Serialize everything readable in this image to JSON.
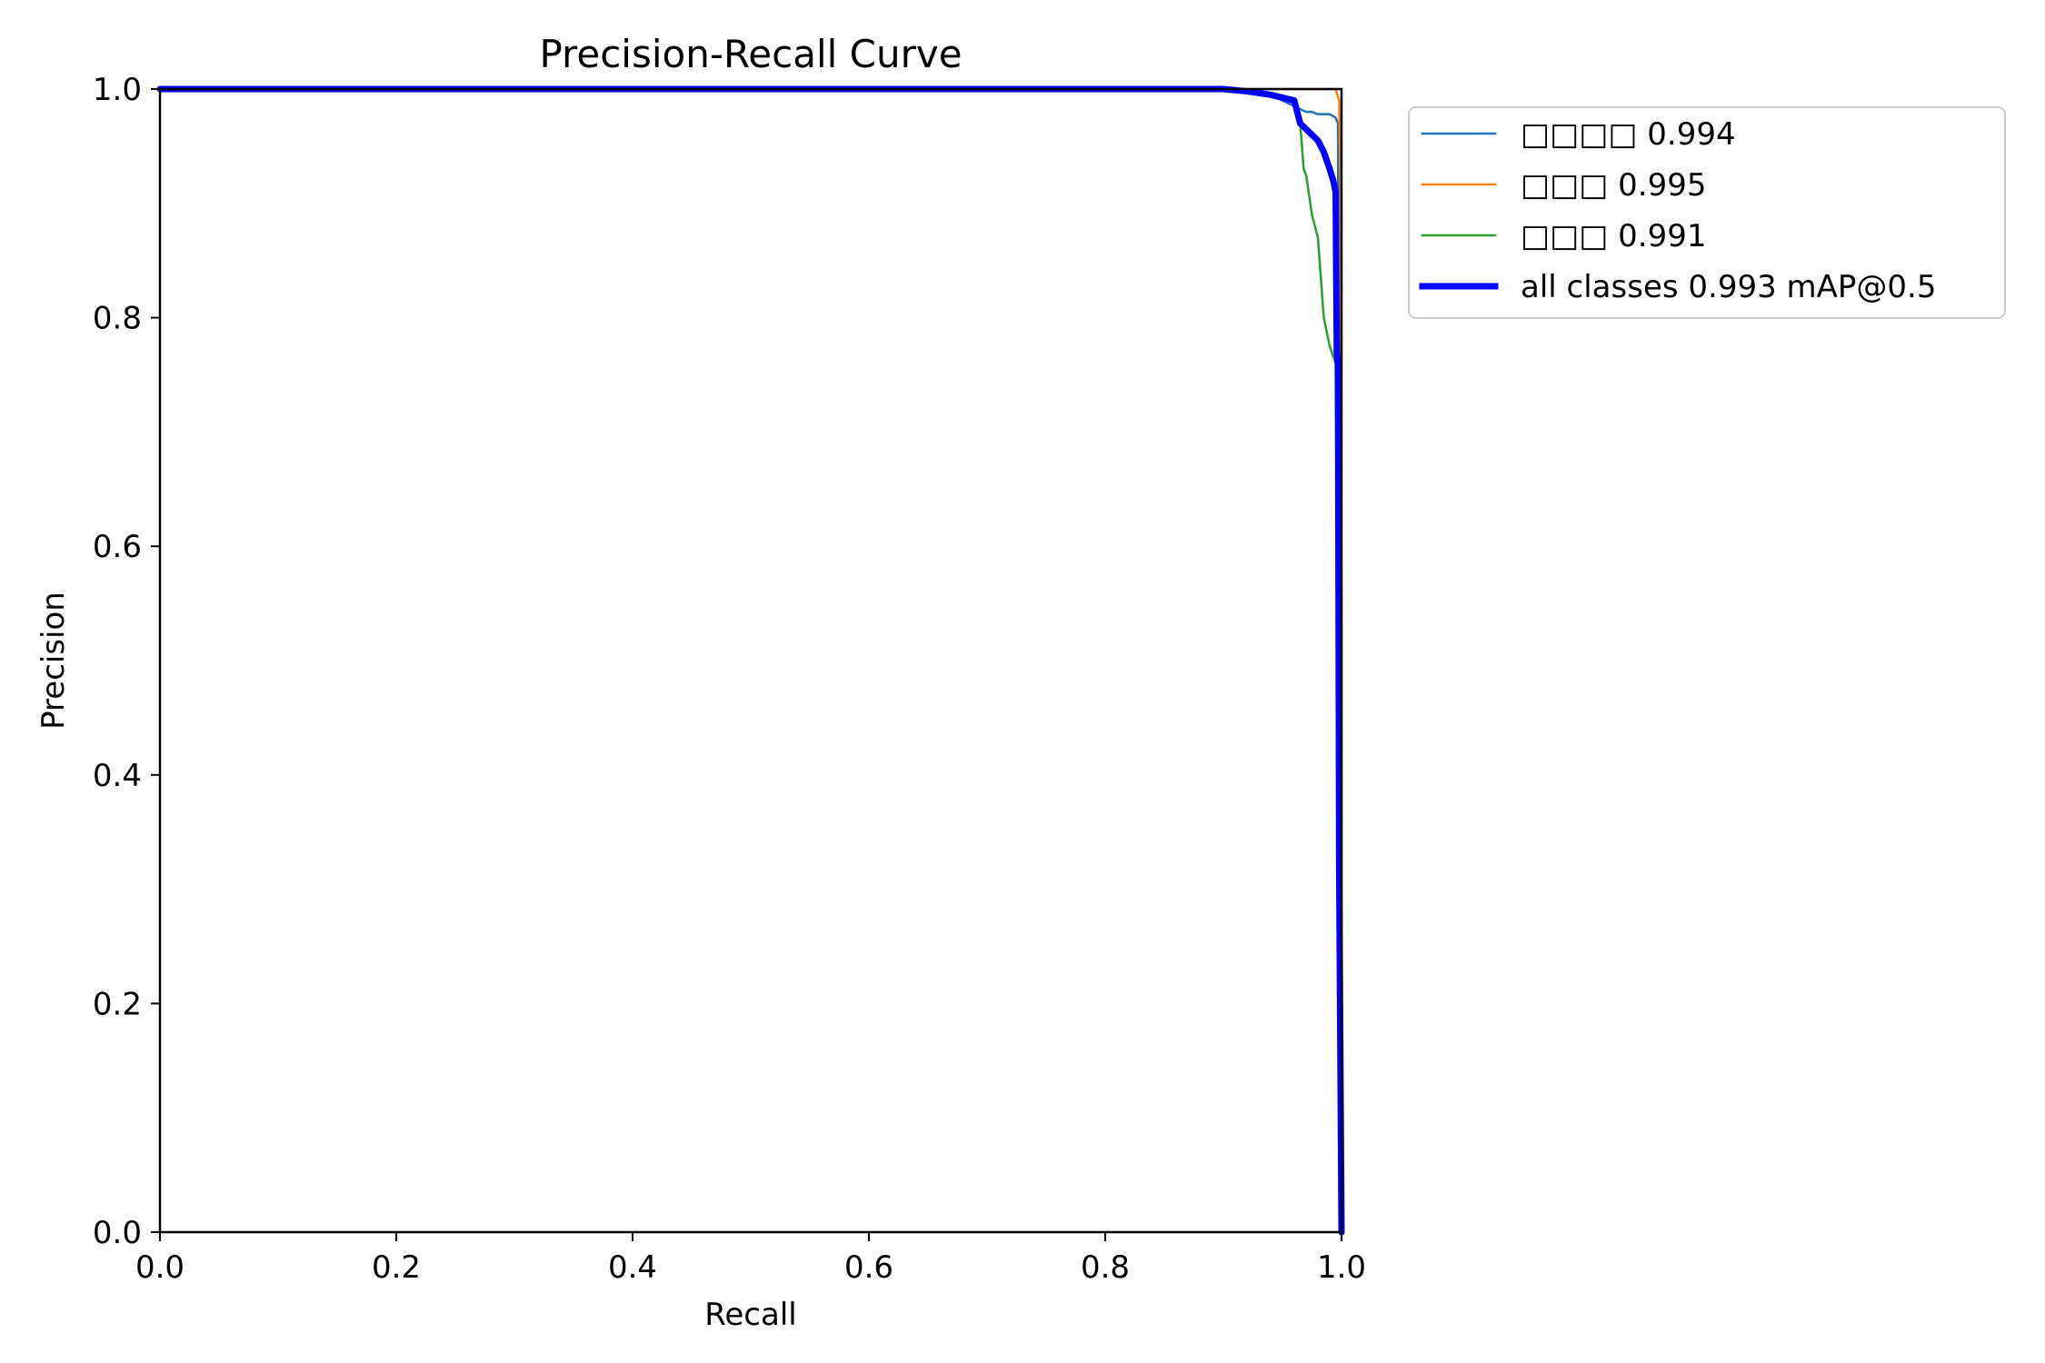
{
  "chart_data": {
    "type": "line",
    "title": "Precision-Recall Curve",
    "xlabel": "Recall",
    "ylabel": "Precision",
    "xlim": [
      0,
      1
    ],
    "ylim": [
      0,
      1
    ],
    "grid": false,
    "legend_placement": "outside-top-right",
    "x_ticks": [
      "0.0",
      "0.2",
      "0.4",
      "0.6",
      "0.8",
      "1.0"
    ],
    "y_ticks": [
      "0.0",
      "0.2",
      "0.4",
      "0.6",
      "0.8",
      "1.0"
    ],
    "series": [
      {
        "label": "□□□□ 0.994",
        "color": "#1f77b4",
        "line_width": "normal",
        "x": [
          0,
          0.9,
          0.92,
          0.94,
          0.95,
          0.96,
          0.97,
          0.975,
          0.98,
          0.99,
          0.995,
          0.997,
          0.998,
          1.0
        ],
        "y": [
          1.0,
          1.0,
          0.998,
          0.995,
          0.99,
          0.985,
          0.98,
          0.98,
          0.978,
          0.978,
          0.975,
          0.97,
          0.5,
          0.0
        ]
      },
      {
        "label": "□□□ 0.995",
        "color": "#ff7f0e",
        "line_width": "normal",
        "x": [
          0,
          0.95,
          0.98,
          0.995,
          0.998,
          0.999,
          1.0,
          1.0
        ],
        "y": [
          1.0,
          1.0,
          1.0,
          1.0,
          0.99,
          0.92,
          0.5,
          0.0
        ]
      },
      {
        "label": "□□□ 0.991",
        "color": "#2ca02c",
        "line_width": "normal",
        "x": [
          0,
          0.9,
          0.94,
          0.96,
          0.965,
          0.968,
          0.97,
          0.975,
          0.98,
          0.985,
          0.99,
          0.995,
          0.997,
          0.998,
          1.0
        ],
        "y": [
          1.0,
          1.0,
          0.995,
          0.99,
          0.97,
          0.93,
          0.925,
          0.89,
          0.87,
          0.8,
          0.775,
          0.76,
          0.5,
          0.2,
          0.0
        ]
      },
      {
        "label": "all classes 0.993 mAP@0.5",
        "color": "#0000ff",
        "line_width": "thick",
        "x": [
          0,
          0.9,
          0.92,
          0.94,
          0.96,
          0.965,
          0.97,
          0.975,
          0.98,
          0.985,
          0.99,
          0.993,
          0.995,
          0.996,
          0.997,
          0.998,
          1.0
        ],
        "y": [
          1.0,
          1.0,
          0.998,
          0.995,
          0.99,
          0.97,
          0.965,
          0.96,
          0.955,
          0.945,
          0.93,
          0.92,
          0.91,
          0.77,
          0.76,
          0.32,
          0.0
        ]
      }
    ]
  }
}
